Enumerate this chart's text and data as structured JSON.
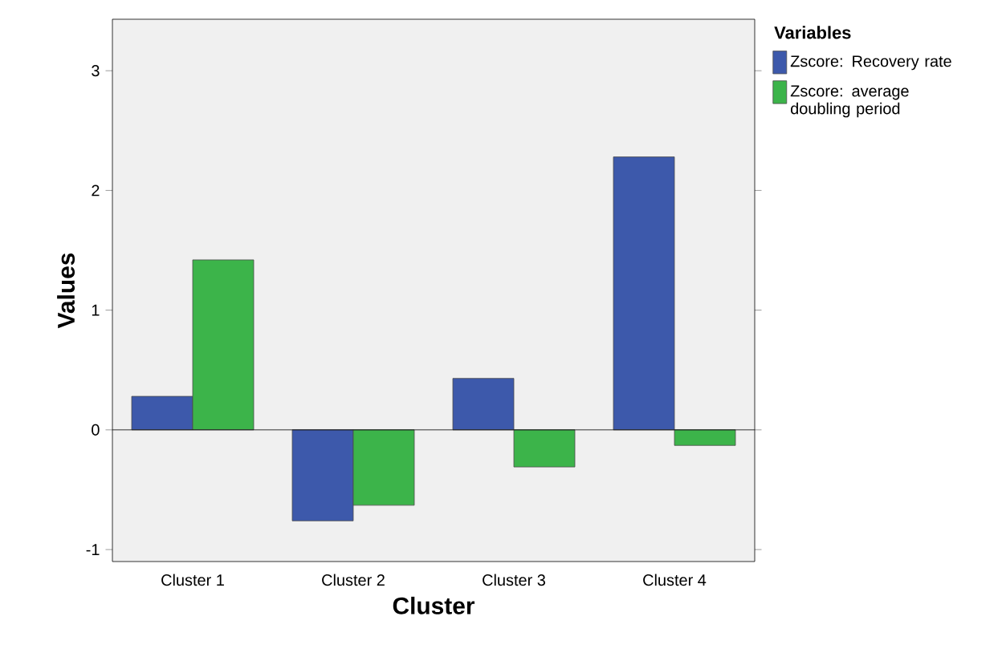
{
  "chart_data": {
    "type": "bar",
    "xlabel": "Cluster",
    "ylabel": "Values",
    "legend_title": "Variables",
    "legend": "right",
    "categories": [
      "Cluster 1",
      "Cluster 2",
      "Cluster 3",
      "Cluster 4"
    ],
    "series": [
      {
        "name": "Zscore: Recovery rate",
        "color": "#3d59ab",
        "values": [
          0.28,
          -0.76,
          0.43,
          2.28
        ]
      },
      {
        "name": "Zscore: average doubling period",
        "color": "#3cb44a",
        "values": [
          1.42,
          -0.63,
          -0.31,
          -0.13
        ]
      }
    ],
    "ylim": [
      -1.1,
      3.43
    ],
    "yticks": [
      -1,
      0,
      1,
      2,
      3
    ]
  }
}
